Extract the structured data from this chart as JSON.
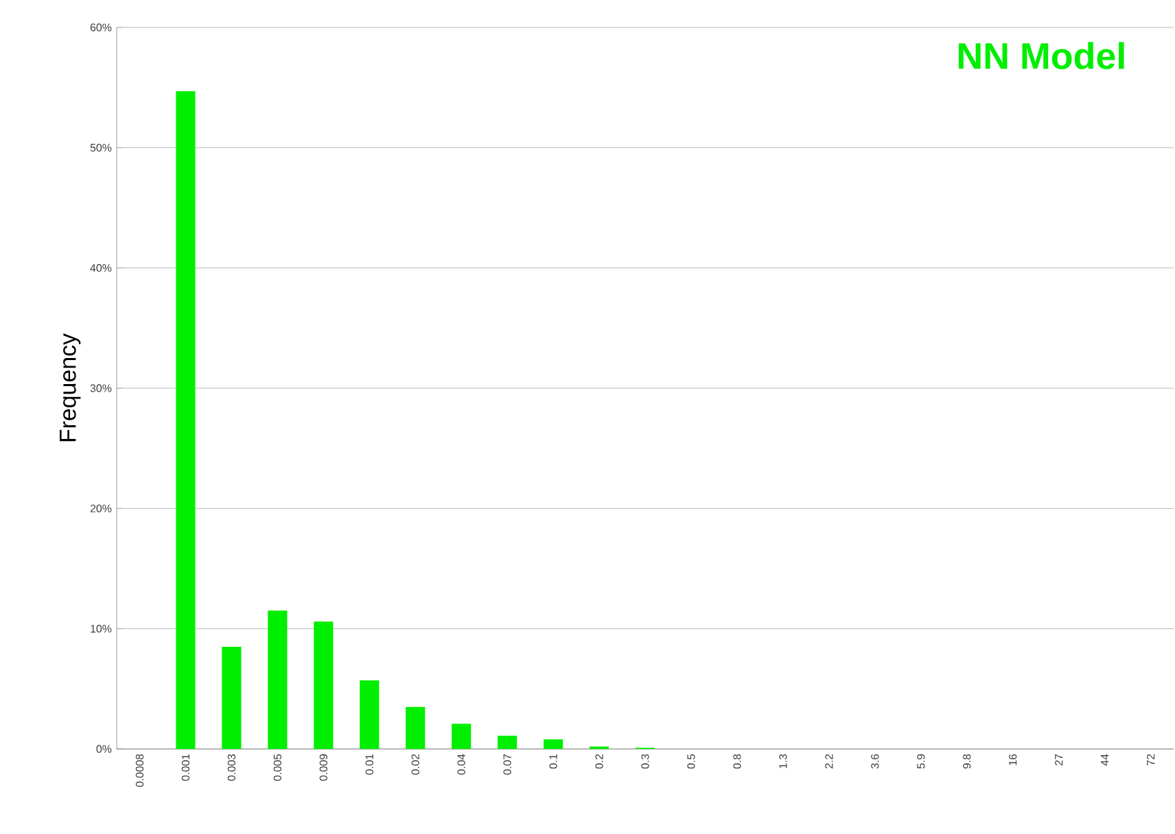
{
  "chart_data": {
    "type": "bar",
    "title": "NN Model",
    "ylabel": "Frequency",
    "categories": [
      "0.0008",
      "0.001",
      "0.003",
      "0.005",
      "0.009",
      "0.01",
      "0.02",
      "0.04",
      "0.07",
      "0.1",
      "0.2",
      "0.3",
      "0.5",
      "0.8",
      "1.3",
      "2.2",
      "3.6",
      "5.9",
      "9.8",
      "16",
      "27",
      "44",
      "72"
    ],
    "values": [
      0,
      54.7,
      8.5,
      11.5,
      10.6,
      5.7,
      3.5,
      2.1,
      1.1,
      0.8,
      0.2,
      0.1,
      0,
      0,
      0,
      0,
      0,
      0,
      0,
      0,
      0,
      0,
      0
    ],
    "color": "#00ee00",
    "ylim": [
      0,
      60
    ],
    "yticks": [
      {
        "value": 0,
        "label": "0%"
      },
      {
        "value": 10,
        "label": "10%"
      },
      {
        "value": 20,
        "label": "20%"
      },
      {
        "value": 30,
        "label": "30%"
      },
      {
        "value": 40,
        "label": "40%"
      },
      {
        "value": 50,
        "label": "50%"
      },
      {
        "value": 60,
        "label": "60%"
      }
    ],
    "grid": "y"
  }
}
